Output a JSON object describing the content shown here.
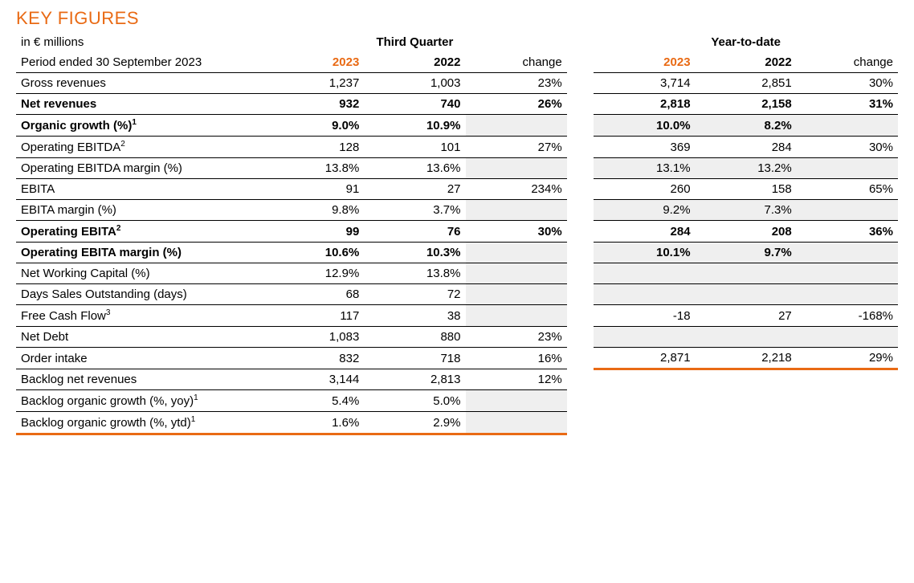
{
  "title": "KEY FIGURES",
  "subtitle": "in € millions",
  "period_label": "Period ended 30 September 2023",
  "section_q": "Third Quarter",
  "section_y": "Year-to-date",
  "col_2023": "2023",
  "col_2022": "2022",
  "col_change": "change",
  "rows": [
    {
      "label": "Gross revenues",
      "bold": false,
      "q": {
        "a": "1,237",
        "b": "1,003",
        "c": "23%",
        "shade": false
      },
      "y": {
        "a": "3,714",
        "b": "2,851",
        "c": "30%",
        "shade": false,
        "show": true
      }
    },
    {
      "label": "Net revenues",
      "bold": true,
      "q": {
        "a": "932",
        "b": "740",
        "c": "26%",
        "shade": false
      },
      "y": {
        "a": "2,818",
        "b": "2,158",
        "c": "31%",
        "shade": false,
        "show": true
      }
    },
    {
      "label": "Organic growth (%)",
      "sup": "1",
      "bold": true,
      "q": {
        "a": "9.0%",
        "b": "10.9%",
        "c": "",
        "shade": true
      },
      "y": {
        "a": "10.0%",
        "b": "8.2%",
        "c": "",
        "shade": true,
        "show": true
      }
    },
    {
      "label": "Operating EBITDA",
      "sup": "2",
      "bold": false,
      "q": {
        "a": "128",
        "b": "101",
        "c": "27%",
        "shade": false
      },
      "y": {
        "a": "369",
        "b": "284",
        "c": "30%",
        "shade": false,
        "show": true
      }
    },
    {
      "label": "Operating EBITDA margin (%)",
      "bold": false,
      "q": {
        "a": "13.8%",
        "b": "13.6%",
        "c": "",
        "shade": true
      },
      "y": {
        "a": "13.1%",
        "b": "13.2%",
        "c": "",
        "shade": true,
        "show": true
      }
    },
    {
      "label": "EBITA",
      "bold": false,
      "q": {
        "a": "91",
        "b": "27",
        "c": "234%",
        "shade": false
      },
      "y": {
        "a": "260",
        "b": "158",
        "c": "65%",
        "shade": false,
        "show": true
      }
    },
    {
      "label": "EBITA margin (%)",
      "bold": false,
      "q": {
        "a": "9.8%",
        "b": "3.7%",
        "c": "",
        "shade": true
      },
      "y": {
        "a": "9.2%",
        "b": "7.3%",
        "c": "",
        "shade": true,
        "show": true
      }
    },
    {
      "label": "Operating EBITA",
      "sup": "2",
      "bold": true,
      "q": {
        "a": "99",
        "b": "76",
        "c": "30%",
        "shade": false
      },
      "y": {
        "a": "284",
        "b": "208",
        "c": "36%",
        "shade": false,
        "show": true
      }
    },
    {
      "label": "Operating EBITA margin (%)",
      "bold": true,
      "q": {
        "a": "10.6%",
        "b": "10.3%",
        "c": "",
        "shade": true
      },
      "y": {
        "a": "10.1%",
        "b": "9.7%",
        "c": "",
        "shade": true,
        "show": true
      }
    },
    {
      "label": "Net Working Capital (%)",
      "bold": false,
      "q": {
        "a": "12.9%",
        "b": "13.8%",
        "c": "",
        "shade": true
      },
      "y": {
        "a": "",
        "b": "",
        "c": "",
        "shade": true,
        "show": true
      }
    },
    {
      "label": "Days Sales Outstanding (days)",
      "bold": false,
      "q": {
        "a": "68",
        "b": "72",
        "c": "",
        "shade": true
      },
      "y": {
        "a": "",
        "b": "",
        "c": "",
        "shade": true,
        "show": true
      }
    },
    {
      "label": "Free Cash Flow",
      "sup": "3",
      "bold": false,
      "q": {
        "a": "117",
        "b": "38",
        "c": "",
        "shade": true
      },
      "y": {
        "a": "-18",
        "b": "27",
        "c": "-168%",
        "shade": false,
        "show": true
      }
    },
    {
      "label": "Net Debt",
      "bold": false,
      "q": {
        "a": "1,083",
        "b": "880",
        "c": "23%",
        "shade": false
      },
      "y": {
        "a": "",
        "b": "",
        "c": "",
        "shade": true,
        "show": true
      }
    },
    {
      "label": "Order intake",
      "bold": false,
      "q": {
        "a": "832",
        "b": "718",
        "c": "16%",
        "shade": false
      },
      "y": {
        "a": "2,871",
        "b": "2,218",
        "c": "29%",
        "shade": false,
        "show": true
      },
      "orange_y": true
    },
    {
      "label": "Backlog net revenues",
      "bold": false,
      "q": {
        "a": "3,144",
        "b": "2,813",
        "c": "12%",
        "shade": false
      },
      "y": {
        "a": "",
        "b": "",
        "c": "",
        "shade": false,
        "show": false
      }
    },
    {
      "label": "Backlog organic growth (%, yoy)",
      "sup": "1",
      "bold": false,
      "q": {
        "a": "5.4%",
        "b": "5.0%",
        "c": "",
        "shade": true
      },
      "y": {
        "a": "",
        "b": "",
        "c": "",
        "shade": false,
        "show": false
      }
    },
    {
      "label": "Backlog organic growth (%, ytd)",
      "sup": "1",
      "bold": false,
      "q": {
        "a": "1.6%",
        "b": "2.9%",
        "c": "",
        "shade": true
      },
      "y": {
        "a": "",
        "b": "",
        "c": "",
        "shade": false,
        "show": false
      },
      "orange_q": true
    }
  ],
  "colors": {
    "accent": "#e96a14",
    "shade": "#efefef",
    "text": "#000000",
    "background": "#ffffff"
  }
}
